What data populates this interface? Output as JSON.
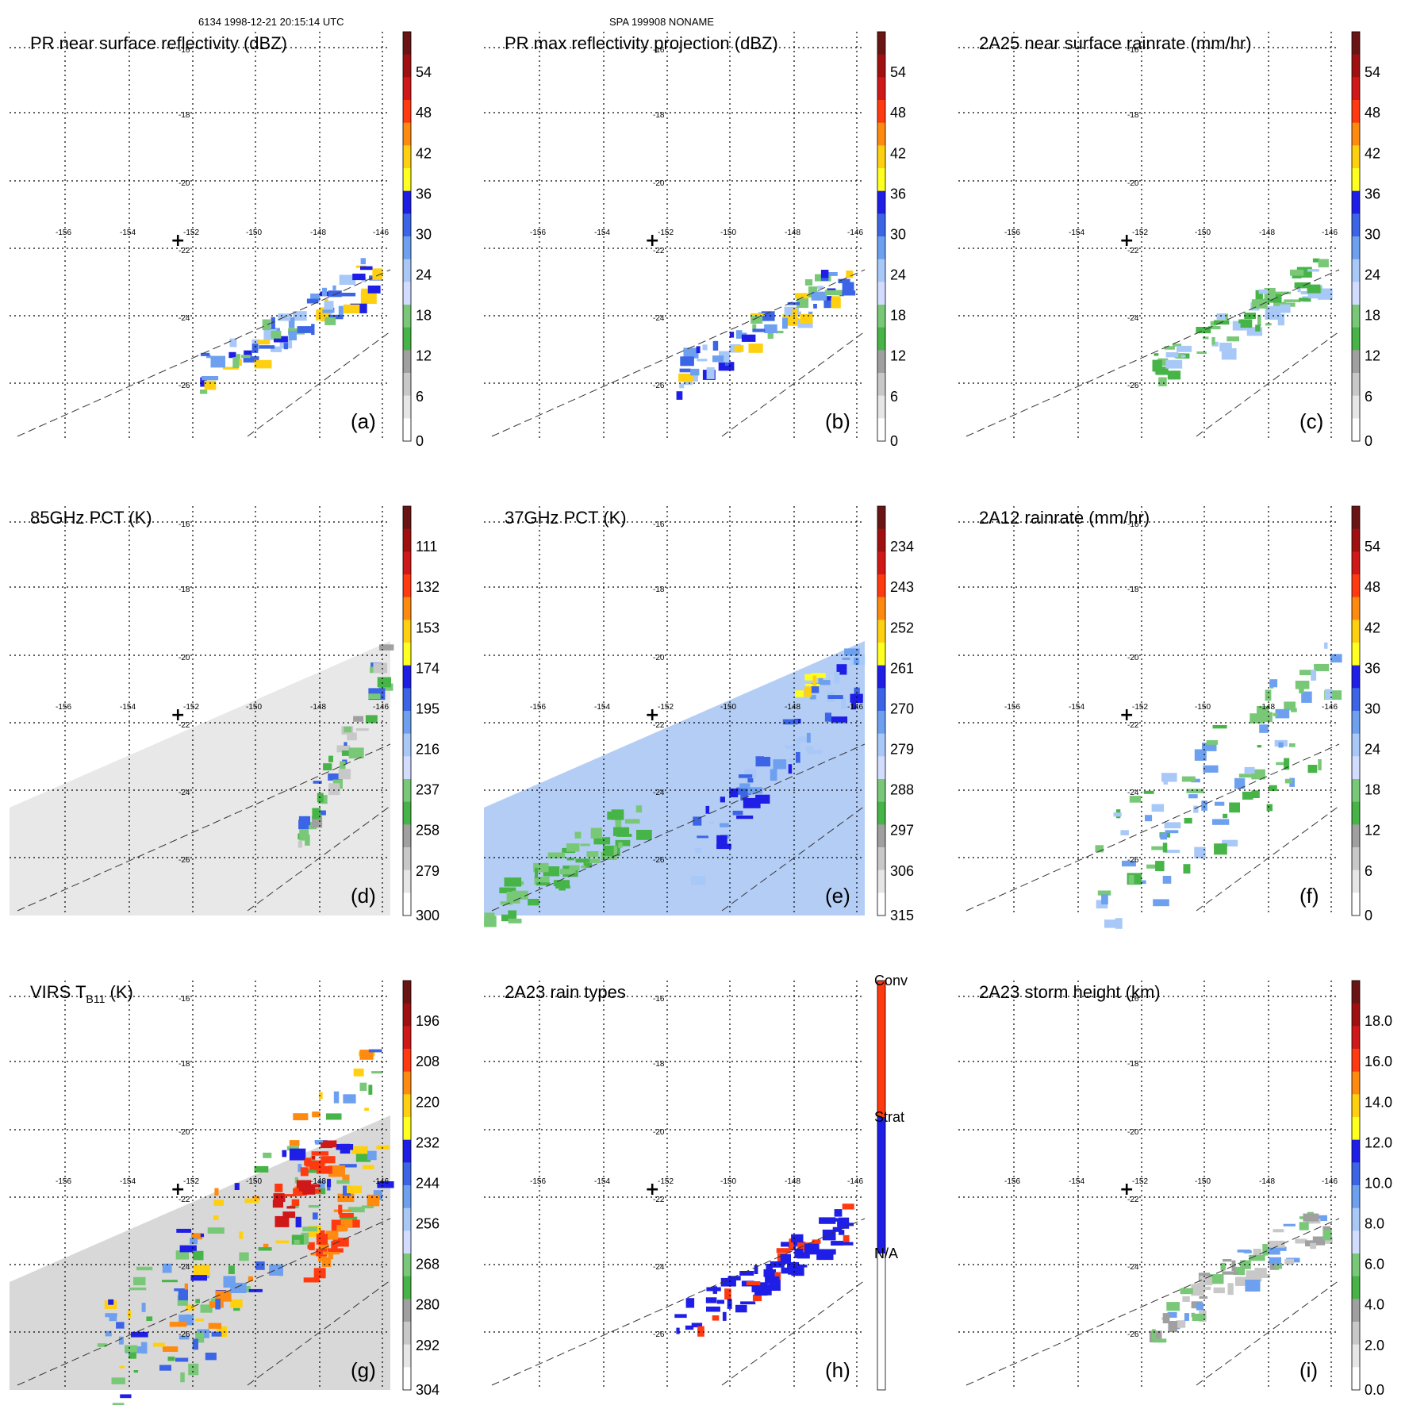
{
  "header": {
    "orbit_line": "6134 1998-12-21 20:15:14 UTC",
    "storm_line": "SPA 199908 NONAME"
  },
  "map": {
    "lon_labels": [
      "-156",
      "-154",
      "-152",
      "-150",
      "-148",
      "-146"
    ],
    "lat_labels": [
      "-16",
      "-18",
      "-20",
      "-22",
      "-24",
      "-26"
    ],
    "center_marker": "+",
    "lon_range": [
      -157,
      -145
    ],
    "lat_range": [
      -27.5,
      -15.5
    ]
  },
  "panels": [
    {
      "id": "a",
      "label": "(a)",
      "title": "PR near surface reflectivity (dBZ)",
      "colorbar_ticks": [
        "54",
        "48",
        "42",
        "36",
        "30",
        "24",
        "18",
        "12",
        "6",
        "0"
      ],
      "colorbar_colors": [
        "#6b1414",
        "#a01010",
        "#d01818",
        "#ff3a10",
        "#ff8a10",
        "#ffd010",
        "#ffff20",
        "#1e1ee6",
        "#3c64e6",
        "#6ea0f0",
        "#a8c8f8",
        "#d2dcff",
        "#78c878",
        "#46b446",
        "#a0a0a0",
        "#c8c8c8",
        "#e6e6e6",
        "#ffffff"
      ],
      "field": "swath-rain"
    },
    {
      "id": "b",
      "label": "(b)",
      "title": "PR max reflectivity projection (dBZ)",
      "colorbar_ticks": [
        "54",
        "48",
        "42",
        "36",
        "30",
        "24",
        "18",
        "12",
        "6",
        "0"
      ],
      "colorbar_colors": [
        "#6b1414",
        "#a01010",
        "#d01818",
        "#ff3a10",
        "#ff8a10",
        "#ffd010",
        "#ffff20",
        "#1e1ee6",
        "#3c64e6",
        "#6ea0f0",
        "#a8c8f8",
        "#d2dcff",
        "#78c878",
        "#46b446",
        "#a0a0a0",
        "#c8c8c8",
        "#e6e6e6",
        "#ffffff"
      ],
      "field": "swath-rain"
    },
    {
      "id": "c",
      "label": "(c)",
      "title": "2A25 near surface rainrate (mm/hr)",
      "colorbar_ticks": [
        "54",
        "48",
        "42",
        "36",
        "30",
        "24",
        "18",
        "12",
        "6",
        "0"
      ],
      "colorbar_colors": [
        "#6b1414",
        "#a01010",
        "#d01818",
        "#ff3a10",
        "#ff8a10",
        "#ffd010",
        "#ffff20",
        "#1e1ee6",
        "#3c64e6",
        "#6ea0f0",
        "#a8c8f8",
        "#d2dcff",
        "#78c878",
        "#46b446",
        "#a0a0a0",
        "#c8c8c8",
        "#e6e6e6",
        "#ffffff"
      ],
      "field": "swath-rain"
    },
    {
      "id": "d",
      "label": "(d)",
      "title": "85GHz PCT (K)",
      "colorbar_ticks": [
        "111",
        "132",
        "153",
        "174",
        "195",
        "216",
        "237",
        "258",
        "279",
        "300"
      ],
      "colorbar_colors": [
        "#6b1414",
        "#a01010",
        "#d01818",
        "#ff3a10",
        "#ff8a10",
        "#ffd010",
        "#ffff20",
        "#1e1ee6",
        "#3c64e6",
        "#6ea0f0",
        "#a8c8f8",
        "#d2dcff",
        "#78c878",
        "#46b446",
        "#a0a0a0",
        "#c8c8c8",
        "#e6e6e6",
        "#ffffff"
      ],
      "field": "tmi-gray"
    },
    {
      "id": "e",
      "label": "(e)",
      "title": "37GHz PCT (K)",
      "colorbar_ticks": [
        "234",
        "243",
        "252",
        "261",
        "270",
        "279",
        "288",
        "297",
        "306",
        "315"
      ],
      "colorbar_colors": [
        "#6b1414",
        "#a01010",
        "#d01818",
        "#ff3a10",
        "#ff8a10",
        "#ffd010",
        "#ffff20",
        "#1e1ee6",
        "#3c64e6",
        "#6ea0f0",
        "#a8c8f8",
        "#d2dcff",
        "#78c878",
        "#46b446",
        "#a0a0a0",
        "#c8c8c8",
        "#e6e6e6",
        "#ffffff"
      ],
      "field": "tmi-blue"
    },
    {
      "id": "f",
      "label": "(f)",
      "title": "2A12 rainrate (mm/hr)",
      "colorbar_ticks": [
        "54",
        "48",
        "42",
        "36",
        "30",
        "24",
        "18",
        "12",
        "6",
        "0"
      ],
      "colorbar_colors": [
        "#6b1414",
        "#a01010",
        "#d01818",
        "#ff3a10",
        "#ff8a10",
        "#ffd010",
        "#ffff20",
        "#1e1ee6",
        "#3c64e6",
        "#6ea0f0",
        "#a8c8f8",
        "#d2dcff",
        "#78c878",
        "#46b446",
        "#a0a0a0",
        "#c8c8c8",
        "#e6e6e6",
        "#ffffff"
      ],
      "field": "tmi-rain"
    },
    {
      "id": "g",
      "label": "(g)",
      "title": "VIRS T",
      "title_sub": "B11",
      "title_tail": " (K)",
      "colorbar_ticks": [
        "196",
        "208",
        "220",
        "232",
        "244",
        "256",
        "268",
        "280",
        "292",
        "304"
      ],
      "colorbar_colors": [
        "#6b1414",
        "#a01010",
        "#d01818",
        "#ff3a10",
        "#ff8a10",
        "#ffd010",
        "#ffff20",
        "#1e1ee6",
        "#3c64e6",
        "#6ea0f0",
        "#a8c8f8",
        "#d2dcff",
        "#78c878",
        "#46b446",
        "#a0a0a0",
        "#c8c8c8",
        "#e6e6e6",
        "#ffffff"
      ],
      "field": "virs"
    },
    {
      "id": "h",
      "label": "(h)",
      "title": "2A23 rain types",
      "colorbar_ticks": [
        "Conv",
        "Strat",
        "N/A"
      ],
      "colorbar_colors": [
        "#ff3a10",
        "#1e1ee6",
        "#ffffff"
      ],
      "field": "swath-type"
    },
    {
      "id": "i",
      "label": "(i)",
      "title": "2A23 storm height (km)",
      "colorbar_ticks": [
        "18.0",
        "16.0",
        "14.0",
        "12.0",
        "10.0",
        "8.0",
        "6.0",
        "4.0",
        "2.0",
        "0.0"
      ],
      "colorbar_colors": [
        "#6b1414",
        "#a01010",
        "#d01818",
        "#ff3a10",
        "#ff8a10",
        "#ffd010",
        "#ffff20",
        "#1e1ee6",
        "#3c64e6",
        "#6ea0f0",
        "#a8c8f8",
        "#d2dcff",
        "#78c878",
        "#46b446",
        "#a0a0a0",
        "#c8c8c8",
        "#e6e6e6",
        "#ffffff"
      ],
      "field": "swath-height"
    }
  ],
  "chart_data": {
    "type": "heatmap",
    "note_panels": 9,
    "x_axis": "longitude",
    "y_axis": "latitude",
    "xlim": [
      -157,
      -145
    ],
    "ylim": [
      -27.5,
      -15.5
    ],
    "grid": true
  }
}
